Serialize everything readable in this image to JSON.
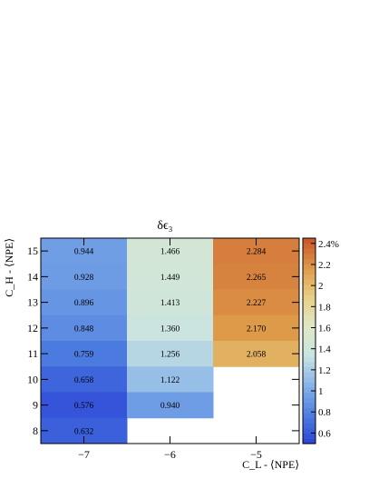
{
  "chart_data": {
    "type": "heatmap",
    "title": "δϵ₃",
    "xlabel": "C_L - ⟨NPE⟩",
    "ylabel": "C_H - ⟨NPE⟩",
    "x_categories": [
      -7,
      -6,
      -5
    ],
    "x_tick_labels": [
      "−7",
      "−6",
      "−5"
    ],
    "y_categories": [
      8,
      9,
      10,
      11,
      12,
      13,
      14,
      15
    ],
    "y_tick_labels": [
      "8",
      "9",
      "10",
      "11",
      "12",
      "13",
      "14",
      "15"
    ],
    "cells": [
      {
        "x": -7,
        "y": 15,
        "value": 0.944,
        "label": "0.944"
      },
      {
        "x": -7,
        "y": 14,
        "value": 0.928,
        "label": "0.928"
      },
      {
        "x": -7,
        "y": 13,
        "value": 0.896,
        "label": "0.896"
      },
      {
        "x": -7,
        "y": 12,
        "value": 0.848,
        "label": "0.848"
      },
      {
        "x": -7,
        "y": 11,
        "value": 0.759,
        "label": "0.759"
      },
      {
        "x": -7,
        "y": 10,
        "value": 0.658,
        "label": "0.658"
      },
      {
        "x": -7,
        "y": 9,
        "value": 0.576,
        "label": "0.576"
      },
      {
        "x": -7,
        "y": 8,
        "value": 0.632,
        "label": "0.632"
      },
      {
        "x": -6,
        "y": 15,
        "value": 1.466,
        "label": "1.466"
      },
      {
        "x": -6,
        "y": 14,
        "value": 1.449,
        "label": "1.449"
      },
      {
        "x": -6,
        "y": 13,
        "value": 1.413,
        "label": "1.413"
      },
      {
        "x": -6,
        "y": 12,
        "value": 1.36,
        "label": "1.360"
      },
      {
        "x": -6,
        "y": 11,
        "value": 1.256,
        "label": "1.256"
      },
      {
        "x": -6,
        "y": 10,
        "value": 1.122,
        "label": "1.122"
      },
      {
        "x": -6,
        "y": 9,
        "value": 0.94,
        "label": "0.940"
      },
      {
        "x": -5,
        "y": 15,
        "value": 2.284,
        "label": "2.284"
      },
      {
        "x": -5,
        "y": 14,
        "value": 2.265,
        "label": "2.265"
      },
      {
        "x": -5,
        "y": 13,
        "value": 2.227,
        "label": "2.227"
      },
      {
        "x": -5,
        "y": 12,
        "value": 2.17,
        "label": "2.170"
      },
      {
        "x": -5,
        "y": 11,
        "value": 2.058,
        "label": "2.058"
      }
    ],
    "colorbar": {
      "range": [
        0.5,
        2.45
      ],
      "ticks": [
        0.6,
        0.8,
        1.0,
        1.2,
        1.4,
        1.6,
        1.8,
        2.0,
        2.2,
        2.4
      ],
      "tick_labels": [
        "0.6",
        "0.8",
        "1",
        "1.2",
        "1.4",
        "1.6",
        "1.8",
        "2",
        "2.2",
        "2.4%"
      ],
      "color_stops": [
        "#2b44d6",
        "#4f7fe0",
        "#86b3e8",
        "#c9e4e2",
        "#dfe8c6",
        "#e8cf86",
        "#dd9a48",
        "#c8552c"
      ]
    }
  }
}
